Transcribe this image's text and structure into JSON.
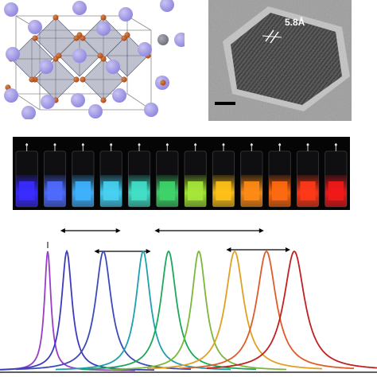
{
  "tem": {
    "lattice_label": "5.8Å"
  },
  "colors": {
    "cs_atom": "#8e86dd",
    "br_atom": "#a64714",
    "pb_atom": "#6c6e7a",
    "octahedron": "#8a8fa6",
    "tem_background": "#9c9c9c",
    "vial_strip_background": "#050505"
  },
  "vials": {
    "count": 12,
    "glow_colors": [
      "#3a2cff",
      "#4f6cff",
      "#3fb2ff",
      "#48d2f2",
      "#43e0c8",
      "#3fd56a",
      "#a6e83a",
      "#ffc21a",
      "#ff8c16",
      "#ff6a12",
      "#ff3a18",
      "#f21a1a"
    ]
  },
  "spectra": {
    "peak_colors": [
      "#9a3cc8",
      "#3b3bc0",
      "#3a4ab8",
      "#1f9fb0",
      "#1aa85a",
      "#7ab83a",
      "#e0a020",
      "#e05a2a",
      "#c02020"
    ],
    "x_range": [
      0,
      474
    ],
    "range_arrows": [
      {
        "from": 0.16,
        "to": 0.32
      },
      {
        "from": 0.25,
        "to": 0.4
      },
      {
        "from": 0.41,
        "to": 0.7
      },
      {
        "from": 0.6,
        "to": 0.77
      }
    ]
  }
}
